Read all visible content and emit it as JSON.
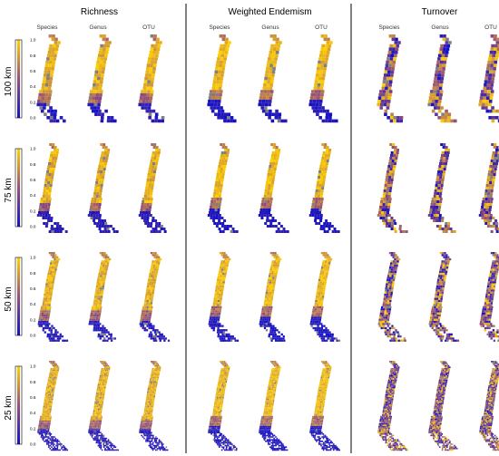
{
  "metrics": [
    {
      "id": "richness",
      "title": "Richness",
      "mode": "richness"
    },
    {
      "id": "weighted-endemism",
      "title": "Weighted Endemism",
      "mode": "endemism"
    },
    {
      "id": "turnover",
      "title": "Turnover",
      "mode": "turnover"
    }
  ],
  "taxonomic_levels": [
    "Species",
    "Genus",
    "OTU"
  ],
  "resolutions": [
    {
      "label": "100 km",
      "cell": 3.6
    },
    {
      "label": "75 km",
      "cell": 3.0
    },
    {
      "label": "50 km",
      "cell": 2.3
    },
    {
      "label": "25 km",
      "cell": 1.6
    }
  ],
  "color_scale": {
    "ticks": [
      "1.0",
      "0.8",
      "0.6",
      "0.4",
      "0.2",
      "0.0"
    ],
    "range": [
      0,
      1
    ],
    "low": "#1010c8",
    "high": "#ffd000",
    "no_data": "#808080"
  },
  "grid_dividers": true
}
